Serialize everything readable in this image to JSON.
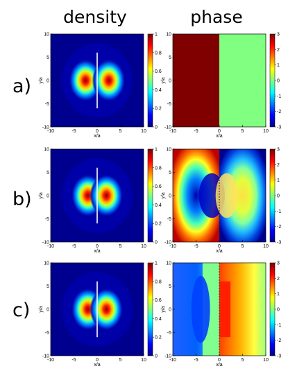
{
  "figure": {
    "column_titles": [
      "density",
      "phase"
    ],
    "row_labels": [
      "a)",
      "b)",
      "c)"
    ],
    "xlabel": "x/a",
    "ylabel": "y/a",
    "axis_ticks": [
      "-10",
      "-5",
      "0",
      "5",
      "10"
    ],
    "density_colorbar_ticks": [
      "0",
      "0.2",
      "0.4",
      "0.6",
      "0.8",
      "1"
    ],
    "phase_colorbar_ticks": [
      "-3",
      "-2",
      "-1",
      "0",
      "1",
      "2",
      "3"
    ]
  },
  "chart_data": [
    {
      "type": "heatmap",
      "panel": "a) density",
      "quantity": "density",
      "xlabel": "x/a",
      "ylabel": "y/a",
      "xlim": [
        -10,
        10
      ],
      "ylim": [
        -10,
        10
      ],
      "clim": [
        0,
        1
      ],
      "description_lobes": [
        {
          "x": -2.5,
          "y": 0,
          "peak": 1
        },
        {
          "x": 2.5,
          "y": 0,
          "peak": 1
        }
      ],
      "barrier_x": 0,
      "barrier_y_range": [
        -6,
        6
      ]
    },
    {
      "type": "heatmap",
      "panel": "a) phase",
      "quantity": "phase",
      "xlabel": "x/a",
      "ylabel": "y/a",
      "xlim": [
        -10,
        10
      ],
      "ylim": [
        -10,
        10
      ],
      "clim": [
        -3,
        3
      ],
      "regions": [
        {
          "x_range": [
            -10,
            0
          ],
          "phase": 3
        },
        {
          "x_range": [
            0,
            10
          ],
          "phase": 0
        }
      ]
    },
    {
      "type": "heatmap",
      "panel": "b) density",
      "quantity": "density",
      "xlabel": "x/a",
      "ylabel": "y/a",
      "xlim": [
        -10,
        10
      ],
      "ylim": [
        -10,
        10
      ],
      "clim": [
        0,
        1
      ],
      "description_lobes": [
        {
          "x": -2,
          "y": 0,
          "peak": 1
        },
        {
          "x": 2,
          "y": 0,
          "peak": 1
        }
      ],
      "barrier_x": 0,
      "barrier_y_range": [
        -6,
        6
      ]
    },
    {
      "type": "heatmap",
      "panel": "b) phase",
      "quantity": "phase",
      "xlabel": "x/a",
      "ylabel": "y/a",
      "xlim": [
        -10,
        10
      ],
      "ylim": [
        -10,
        10
      ],
      "clim": [
        -3,
        3
      ]
    },
    {
      "type": "heatmap",
      "panel": "c) density",
      "quantity": "density",
      "xlabel": "x/a",
      "ylabel": "y/a",
      "xlim": [
        -10,
        10
      ],
      "ylim": [
        -10,
        10
      ],
      "clim": [
        0,
        1
      ],
      "description_lobes": [
        {
          "x": -2,
          "y": 0,
          "peak": 1
        },
        {
          "x": 2,
          "y": 0,
          "peak": 1
        }
      ],
      "barrier_x": 0,
      "barrier_y_range": [
        -6,
        6
      ]
    },
    {
      "type": "heatmap",
      "panel": "c) phase",
      "quantity": "phase",
      "xlabel": "x/a",
      "ylabel": "y/a",
      "xlim": [
        -10,
        10
      ],
      "ylim": [
        -10,
        10
      ],
      "clim": [
        -3,
        3
      ]
    }
  ]
}
